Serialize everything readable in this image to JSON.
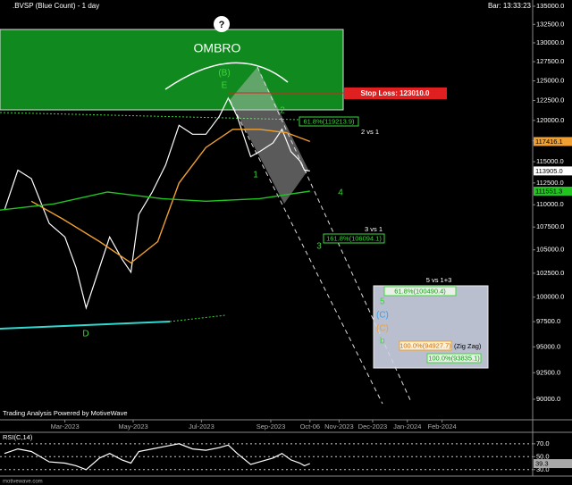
{
  "header": {
    "title": ".BVSP (Blue Count) - 1 day",
    "bar": "Bar: 13:33:23"
  },
  "footer": {
    "credit": "Trading Analysis Powered by MotiveWave",
    "site": "motivewave.com"
  },
  "annotations": {
    "question": "?",
    "ombro": "OMBRO",
    "wave_b": "(B)",
    "wave_e": "E",
    "wave_d": "D",
    "stop_loss": "Stop Loss: 123010.0",
    "fib_2": "61.8%(119213.9)",
    "vs_2": "2 vs 1",
    "wave_1": "1",
    "wave_2": "2",
    "wave_3": "3",
    "wave_4": "4",
    "vs_3": "3 vs 1",
    "fib_3": "161.8%(106094.1)",
    "vs_5": "5 vs 1+3",
    "fib_5": "61.8%(100490.4)",
    "wave_5": "5",
    "wave_c_blue": "(C)",
    "wave_c_orange": "(C)",
    "wave_b_small": "b",
    "fib_zz": "100.0%(94927.7)",
    "zigzag": "(Zig Zag)",
    "fib_c": "100.0%(93835.1)"
  },
  "chart_data": [
    {
      "type": "line",
      "log_scale": true,
      "grid": false,
      "xlim": [
        "2023-01-02",
        "2024-04-22"
      ],
      "xticks": [
        {
          "value": "2023-03-01",
          "label": "Mar-2023"
        },
        {
          "value": "2023-05-01",
          "label": "May-2023"
        },
        {
          "value": "2023-07-01",
          "label": "Jul-2023"
        },
        {
          "value": "2023-09-01",
          "label": "Sep-2023"
        },
        {
          "value": "2023-10-06",
          "label": "Oct-06"
        },
        {
          "value": "2023-11-01",
          "label": "Nov-2023"
        },
        {
          "value": "2023-12-01",
          "label": "Dec-2023"
        },
        {
          "value": "2024-01-01",
          "label": "Jan-2024"
        },
        {
          "value": "2024-02-01",
          "label": "Feb-2024"
        }
      ],
      "ylim": [
        90000,
        135000
      ],
      "yticks": [
        {
          "value": 90000,
          "label": "90000.0"
        },
        {
          "value": 92500,
          "label": "92500.0"
        },
        {
          "value": 95000,
          "label": "95000.0"
        },
        {
          "value": 97500,
          "label": "97500.0"
        },
        {
          "value": 100000,
          "label": "100000.0"
        },
        {
          "value": 102500,
          "label": "102500.0"
        },
        {
          "value": 105000,
          "label": "105000.0"
        },
        {
          "value": 107500,
          "label": "107500.0"
        },
        {
          "value": 110000,
          "label": "110000.0"
        },
        {
          "value": 112500,
          "label": "112500.0"
        },
        {
          "value": 115000,
          "label": "115000.0"
        },
        {
          "value": 117500,
          "label": "117500.0"
        },
        {
          "value": 120000,
          "label": "120000.0"
        },
        {
          "value": 122500,
          "label": "122500.0"
        },
        {
          "value": 125000,
          "label": "125000.0"
        },
        {
          "value": 127500,
          "label": "127500.0"
        },
        {
          "value": 130000,
          "label": "130000.0"
        },
        {
          "value": 132500,
          "label": "132500.0"
        },
        {
          "value": 135000,
          "label": "135000.0"
        }
      ],
      "series": [
        {
          "color": "#ffffff",
          "x": [
            "2023-01-06",
            "2023-01-18",
            "2023-01-30",
            "2023-02-15",
            "2023-03-01",
            "2023-03-11",
            "2023-03-20",
            "2023-04-01",
            "2023-04-10",
            "2023-04-21",
            "2023-04-29",
            "2023-05-06",
            "2023-05-18",
            "2023-05-30",
            "2023-06-11",
            "2023-06-23",
            "2023-07-05",
            "2023-07-17",
            "2023-07-25",
            "2023-08-02",
            "2023-08-14",
            "2023-08-22",
            "2023-09-03",
            "2023-09-11",
            "2023-09-19",
            "2023-09-27",
            "2023-10-01",
            "2023-10-06"
          ],
          "values": [
            109400,
            114000,
            113000,
            107900,
            106400,
            103100,
            98900,
            103100,
            106400,
            104000,
            102600,
            108900,
            111450,
            114600,
            119400,
            118300,
            118300,
            120500,
            122800,
            120500,
            115600,
            116200,
            117250,
            118900,
            116200,
            115100,
            114000,
            113905
          ]
        },
        {
          "color": "#f0a030",
          "x": [
            "2023-01-30",
            "2023-02-27",
            "2023-04-01",
            "2023-04-29",
            "2023-05-23",
            "2023-06-11",
            "2023-07-05",
            "2023-07-29",
            "2023-08-22",
            "2023-09-15",
            "2023-10-06"
          ],
          "values": [
            110400,
            108400,
            105900,
            103600,
            105900,
            112500,
            116700,
            118900,
            118900,
            118500,
            117416.1
          ]
        },
        {
          "color": "#22c422",
          "x": [
            "2023-01-02",
            "2023-02-19",
            "2023-04-08",
            "2023-05-27",
            "2023-07-05",
            "2023-08-22",
            "2023-10-06"
          ],
          "values": [
            109400,
            110100,
            111450,
            110700,
            110400,
            110700,
            111551.3
          ]
        }
      ],
      "axis_badges": [
        117416.1,
        {
          "value": 113905,
          "label": "113905.0"
        },
        111551.3
      ],
      "axis_badge_colors": [
        "#f0a030",
        "#ffffff",
        "#22c422"
      ]
    },
    {
      "type": "line",
      "title": "RSI(C,14)",
      "xlim": [
        "2023-01-02",
        "2024-04-22"
      ],
      "ylim": [
        20,
        85
      ],
      "yticks": [
        {
          "value": 70,
          "label": "70.0"
        },
        {
          "value": 50,
          "label": "50.0"
        },
        {
          "value": 30,
          "label": "30.0"
        }
      ],
      "series": [
        {
          "color": "#ffffff",
          "x": [
            "2023-01-06",
            "2023-01-18",
            "2023-01-30",
            "2023-02-15",
            "2023-03-01",
            "2023-03-11",
            "2023-03-20",
            "2023-04-01",
            "2023-04-10",
            "2023-04-21",
            "2023-04-29",
            "2023-05-06",
            "2023-05-18",
            "2023-05-30",
            "2023-06-11",
            "2023-06-23",
            "2023-07-05",
            "2023-07-17",
            "2023-07-25",
            "2023-08-02",
            "2023-08-14",
            "2023-08-22",
            "2023-09-03",
            "2023-09-11",
            "2023-09-19",
            "2023-09-27",
            "2023-10-01",
            "2023-10-06"
          ],
          "values": [
            55,
            62,
            58,
            42,
            40,
            36,
            30,
            48,
            55,
            45,
            40,
            58,
            62,
            66,
            70,
            62,
            60,
            64,
            68,
            55,
            38,
            42,
            48,
            55,
            45,
            40,
            36,
            39.3
          ]
        }
      ],
      "axis_badges": [
        39.3
      ],
      "axis_badge_colors": [
        "#aaaaaa"
      ]
    }
  ]
}
